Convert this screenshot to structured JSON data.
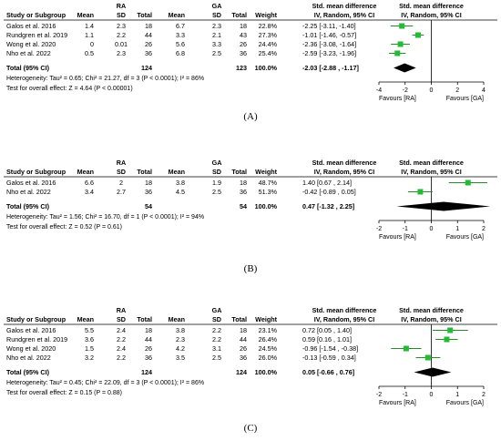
{
  "chart_data": [
    {
      "type": "forest",
      "panel_label": "(A)",
      "headers": {
        "study": "Study or Subgroup",
        "group1": "RA",
        "group2": "GA",
        "mean": "Mean",
        "sd": "SD",
        "total": "Total",
        "weight": "Weight",
        "effect_title": "Std. mean difference",
        "effect_method": "IV, Random, 95% CI"
      },
      "rows": [
        {
          "study": "Galos et al. 2016",
          "mean1": "1.4",
          "sd1": "2.3",
          "n1": "18",
          "mean2": "6.7",
          "sd2": "2.3",
          "n2": "18",
          "weight": "22.8%",
          "ci_text": "-2.25 [-3.11, -1.40]",
          "est": -2.25,
          "lo": -3.11,
          "hi": -1.4
        },
        {
          "study": "Rundgren et al. 2019",
          "mean1": "1.1",
          "sd1": "2.2",
          "n1": "44",
          "mean2": "3.3",
          "sd2": "2.1",
          "n2": "43",
          "weight": "27.3%",
          "ci_text": "-1.01 [-1.46, -0.57]",
          "est": -1.01,
          "lo": -1.46,
          "hi": -0.57
        },
        {
          "study": "Wong et al. 2020",
          "mean1": "0",
          "sd1": "0.01",
          "n1": "26",
          "mean2": "5.6",
          "sd2": "3.3",
          "n2": "26",
          "weight": "24.4%",
          "ci_text": "-2.36 [-3.08, -1.64]",
          "est": -2.36,
          "lo": -3.08,
          "hi": -1.64
        },
        {
          "study": "Nho et al. 2022",
          "mean1": "0.5",
          "sd1": "2.3",
          "n1": "36",
          "mean2": "6.8",
          "sd2": "2.5",
          "n2": "36",
          "weight": "25.4%",
          "ci_text": "-2.59 [-3.23, -1.96]",
          "est": -2.59,
          "lo": -3.23,
          "hi": -1.96
        }
      ],
      "total": {
        "label": "Total (95% CI)",
        "n1": "124",
        "n2": "123",
        "weight": "100.0%",
        "ci_text": "-2.03 [-2.88 , -1.17]",
        "est": -2.03,
        "lo": -2.88,
        "hi": -1.17
      },
      "heterogeneity": "Heterogeneity: Tau² = 0.65; Chi² = 21.27, df = 3 (P < 0.0001); I² = 86%",
      "overall_effect": "Test for overall effect: Z = 4.64 (P < 0.00001)",
      "x_ticks": [
        -4,
        -2,
        0,
        2,
        4
      ],
      "x_tick_labels": [
        "-4",
        "-2",
        "0",
        "2",
        "4"
      ],
      "xlim": [
        -4,
        4
      ],
      "favours_left": "Favours [RA]",
      "favours_right": "Favours [GA]"
    },
    {
      "type": "forest",
      "panel_label": "(B)",
      "headers": {
        "study": "Study or Subgroup",
        "group1": "RA",
        "group2": "GA",
        "mean": "Mean",
        "sd": "SD",
        "total": "Total",
        "weight": "Weight",
        "effect_title": "Std. mean difference",
        "effect_method": "IV, Random, 95% CI"
      },
      "rows": [
        {
          "study": "Galos et al. 2016",
          "mean1": "6.6",
          "sd1": "2",
          "n1": "18",
          "mean2": "3.8",
          "sd2": "1.9",
          "n2": "18",
          "weight": "48.7%",
          "ci_text": "1.40 [0.67 , 2.14]",
          "est": 1.4,
          "lo": 0.67,
          "hi": 2.14
        },
        {
          "study": "Nho et al. 2022",
          "mean1": "3.4",
          "sd1": "2.7",
          "n1": "36",
          "mean2": "4.5",
          "sd2": "2.5",
          "n2": "36",
          "weight": "51.3%",
          "ci_text": "-0.42 [-0.89 , 0.05]",
          "est": -0.42,
          "lo": -0.89,
          "hi": 0.05
        }
      ],
      "total": {
        "label": "Total (95% CI)",
        "n1": "54",
        "n2": "54",
        "weight": "100.0%",
        "ci_text": "0.47 [-1.32 , 2.25]",
        "est": 0.47,
        "lo": -1.32,
        "hi": 2.25
      },
      "heterogeneity": "Heterogeneity: Tau² = 1.56; Chi² = 16.70, df = 1 (P < 0.0001); I² = 94%",
      "overall_effect": "Test for overall effect: Z = 0.52 (P = 0.61)",
      "x_ticks": [
        -2,
        -1,
        0,
        1,
        2
      ],
      "x_tick_labels": [
        "-2",
        "-1",
        "0",
        "1",
        "2"
      ],
      "xlim": [
        -2,
        2
      ],
      "favours_left": "Favours [RA]",
      "favours_right": "Favours [GA]"
    },
    {
      "type": "forest",
      "panel_label": "(C)",
      "headers": {
        "study": "Study or Subgroup",
        "group1": "RA",
        "group2": "GA",
        "mean": "Mean",
        "sd": "SD",
        "total": "Total",
        "weight": "Weight",
        "effect_title": "Std. mean difference",
        "effect_method": "IV, Random, 95% CI"
      },
      "rows": [
        {
          "study": "Galos et al. 2016",
          "mean1": "5.5",
          "sd1": "2.4",
          "n1": "18",
          "mean2": "3.8",
          "sd2": "2.2",
          "n2": "18",
          "weight": "23.1%",
          "ci_text": "0.72 [0.05 , 1.40]",
          "est": 0.72,
          "lo": 0.05,
          "hi": 1.4
        },
        {
          "study": "Rundgren et al. 2019",
          "mean1": "3.6",
          "sd1": "2.2",
          "n1": "44",
          "mean2": "2.3",
          "sd2": "2.2",
          "n2": "44",
          "weight": "26.4%",
          "ci_text": "0.59 [0.16 , 1.01]",
          "est": 0.59,
          "lo": 0.16,
          "hi": 1.01
        },
        {
          "study": "Wong et al. 2020",
          "mean1": "1.5",
          "sd1": "2.4",
          "n1": "26",
          "mean2": "4.2",
          "sd2": "3.1",
          "n2": "26",
          "weight": "24.5%",
          "ci_text": "-0.96 [-1.54 , -0.38]",
          "est": -0.96,
          "lo": -1.54,
          "hi": -0.38
        },
        {
          "study": "Nho et al. 2022",
          "mean1": "3.2",
          "sd1": "2.2",
          "n1": "36",
          "mean2": "3.5",
          "sd2": "2.5",
          "n2": "36",
          "weight": "26.0%",
          "ci_text": "-0.13 [-0.59 , 0.34]",
          "est": -0.13,
          "lo": -0.59,
          "hi": 0.34
        }
      ],
      "total": {
        "label": "Total (95% CI)",
        "n1": "124",
        "n2": "124",
        "weight": "100.0%",
        "ci_text": "0.05 [-0.66 , 0.76]",
        "est": 0.05,
        "lo": -0.66,
        "hi": 0.76
      },
      "heterogeneity": "Heterogeneity: Tau² = 0.45; Chi² = 22.09, df = 3 (P < 0.0001); I² = 86%",
      "overall_effect": "Test for overall effect: Z = 0.15 (P = 0.88)",
      "x_ticks": [
        -2,
        -1,
        0,
        1,
        2
      ],
      "x_tick_labels": [
        "-2",
        "-1",
        "0",
        "1",
        "2"
      ],
      "xlim": [
        -2,
        2
      ],
      "favours_left": "Favours [RA]",
      "favours_right": "Favours [GA]"
    }
  ],
  "colors": {
    "marker": "#22bb33",
    "ci_line": "#2a8a2a",
    "diamond": "#000000"
  }
}
